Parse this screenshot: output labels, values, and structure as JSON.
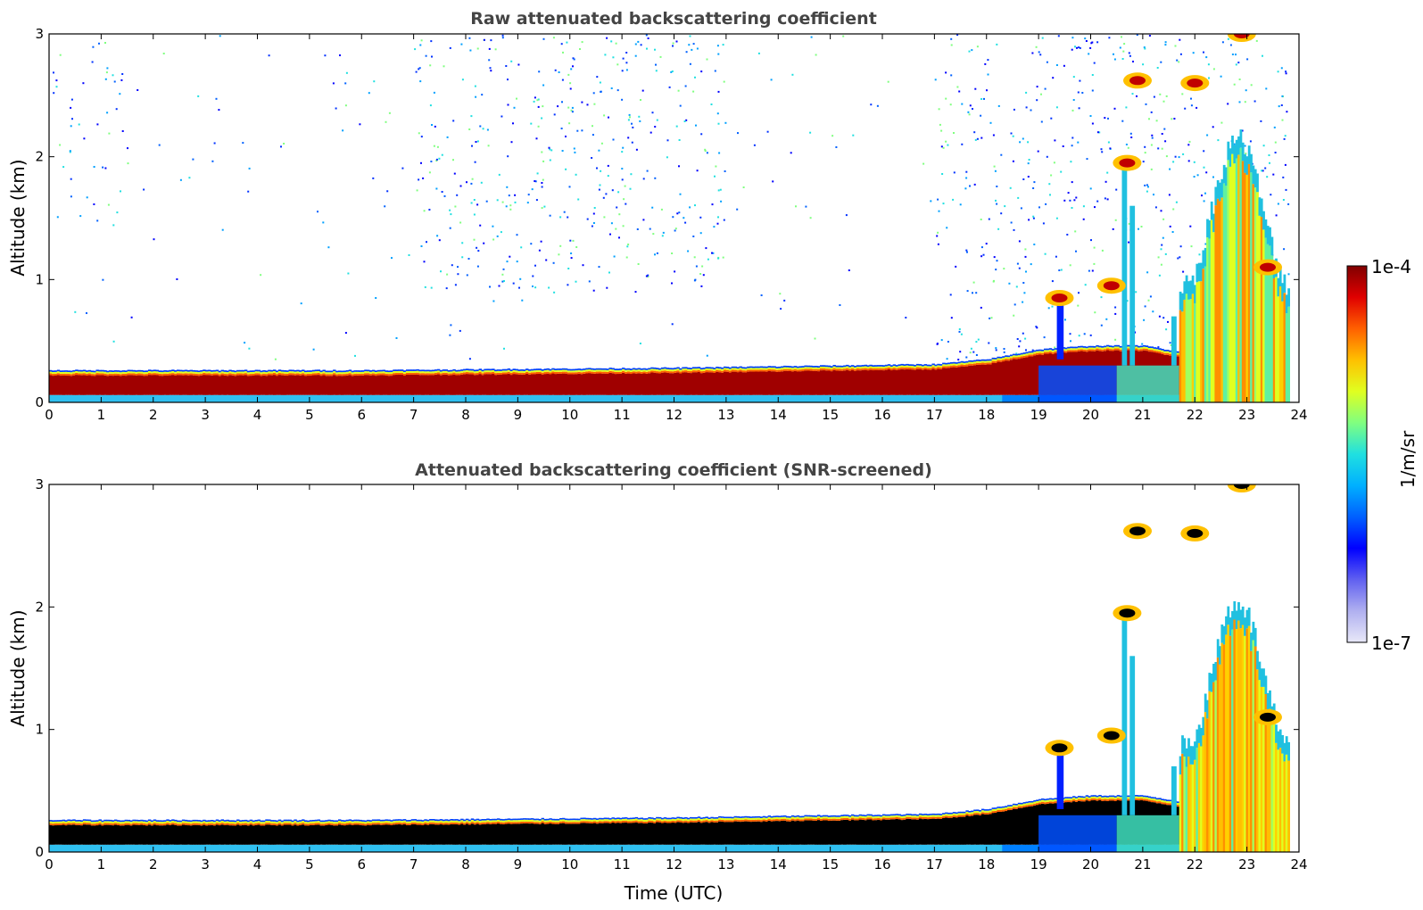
{
  "chart_data": [
    {
      "type": "heatmap",
      "title": "Raw attenuated backscattering coefficient",
      "xlabel": "",
      "ylabel": "Altitude (km)",
      "xlim": [
        0,
        24
      ],
      "ylim": [
        0,
        3
      ],
      "xticks": [
        "0",
        "1",
        "2",
        "3",
        "4",
        "5",
        "6",
        "7",
        "8",
        "9",
        "10",
        "11",
        "12",
        "13",
        "14",
        "15",
        "16",
        "17",
        "18",
        "19",
        "20",
        "21",
        "22",
        "23",
        "24"
      ],
      "yticks": [
        "0",
        "1",
        "2",
        "3"
      ],
      "variant": "raw",
      "features": {
        "boundary_layer_top_km": [
          [
            0,
            0.25
          ],
          [
            6,
            0.25
          ],
          [
            12,
            0.27
          ],
          [
            17,
            0.3
          ],
          [
            18,
            0.34
          ],
          [
            19,
            0.42
          ],
          [
            20,
            0.45
          ],
          [
            21,
            0.45
          ],
          [
            21.7,
            0.4
          ]
        ],
        "aerosol_plumes": [
          {
            "x": 19.4,
            "y": 0.85
          },
          {
            "x": 20.4,
            "y": 0.95
          },
          {
            "x": 20.7,
            "y": 1.95
          },
          {
            "x": 20.9,
            "y": 2.62
          },
          {
            "x": 22.0,
            "y": 2.6
          },
          {
            "x": 22.9,
            "y": 3.0
          },
          {
            "x": 23.4,
            "y": 1.1
          }
        ],
        "dense_region_x": [
          21.7,
          23.8
        ],
        "data_end_x": 23.8
      }
    },
    {
      "type": "heatmap",
      "title": "Attenuated backscattering coefficient (SNR-screened)",
      "xlabel": "Time (UTC)",
      "ylabel": "Altitude (km)",
      "xlim": [
        0,
        24
      ],
      "ylim": [
        0,
        3
      ],
      "xticks": [
        "0",
        "1",
        "2",
        "3",
        "4",
        "5",
        "6",
        "7",
        "8",
        "9",
        "10",
        "11",
        "12",
        "13",
        "14",
        "15",
        "16",
        "17",
        "18",
        "19",
        "20",
        "21",
        "22",
        "23",
        "24"
      ],
      "yticks": [
        "0",
        "1",
        "2",
        "3"
      ],
      "variant": "screened"
    }
  ],
  "colorbar": {
    "label": "1/m/sr",
    "max_label": "1e-4",
    "min_label": "1e-7",
    "colors": [
      "#e8e8f8",
      "#b0b0f0",
      "#6060f0",
      "#0000ff",
      "#0060ff",
      "#00b0ff",
      "#20e0e0",
      "#80ff80",
      "#e0ff20",
      "#ffc000",
      "#ff6000",
      "#e00000",
      "#800000"
    ]
  }
}
